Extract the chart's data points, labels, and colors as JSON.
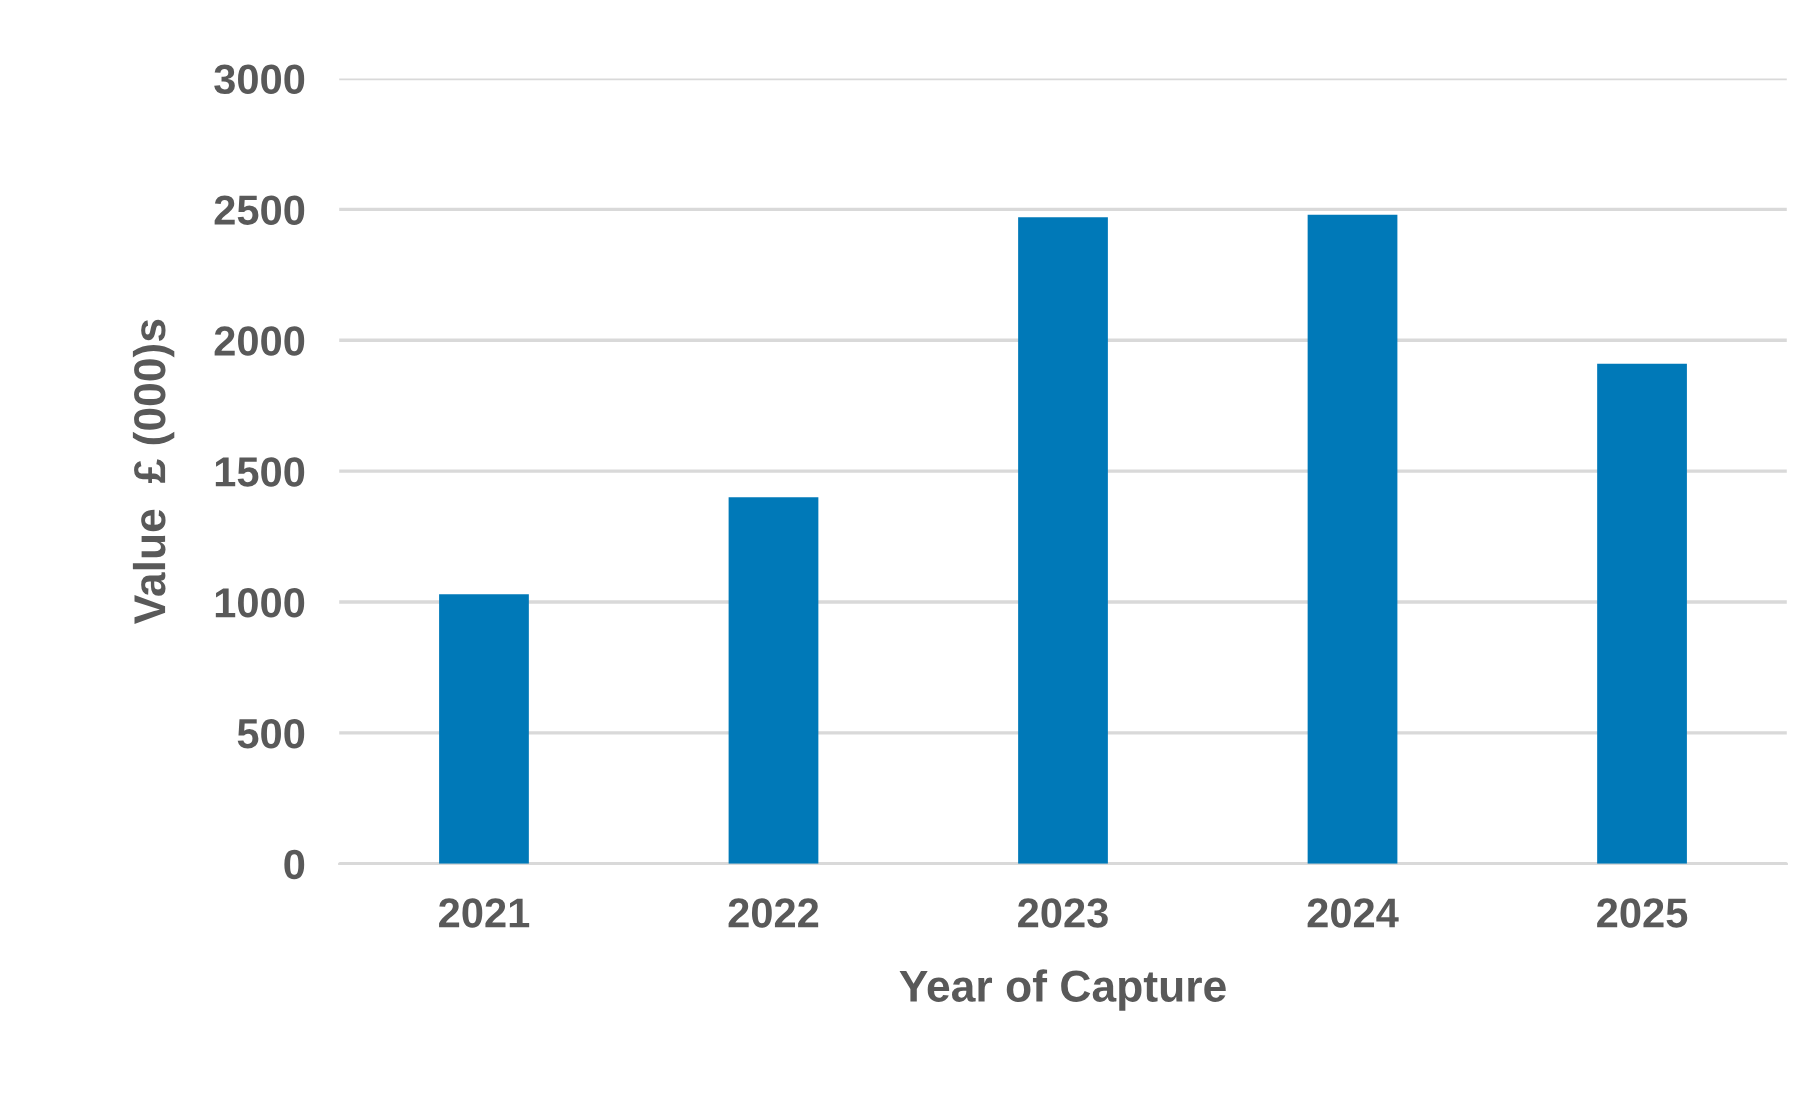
{
  "chart_data": {
    "type": "bar",
    "xlabel": "Year of Capture",
    "ylabel": "Value  £ (000)s",
    "categories": [
      "2021",
      "2022",
      "2023",
      "2024",
      "2025"
    ],
    "values": [
      1030,
      1400,
      2470,
      2480,
      1910
    ],
    "color": "#0079b8",
    "ylim": [
      0,
      3000
    ],
    "yticks": [
      0,
      500,
      1000,
      1500,
      2000,
      2500,
      3000
    ],
    "grid": "y",
    "legend": false
  }
}
